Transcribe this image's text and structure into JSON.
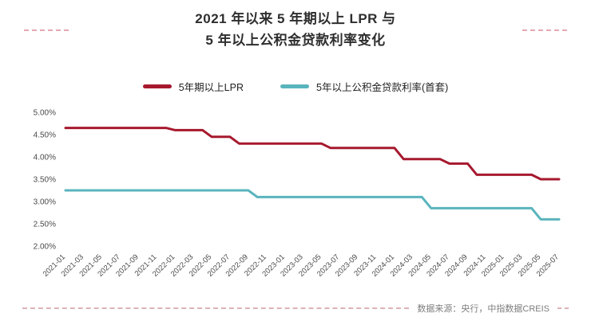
{
  "title": {
    "line1": "2021 年以来 5 年期以上 LPR 与",
    "line2": "5 年以上公积金贷款利率变化"
  },
  "legend": [
    {
      "label": "5年期以上LPR",
      "color": "#a6192e"
    },
    {
      "label": "5年以上公积金贷款利率(首套)",
      "color": "#59b4bd"
    }
  ],
  "footer": {
    "source": "数据来源：央行，中指数据CREIS"
  },
  "chart_data": {
    "type": "line",
    "title": "2021 年以来 5 年期以上 LPR 与 5 年以上公积金贷款利率变化",
    "xlabel": "",
    "ylabel": "",
    "ylim": [
      2.0,
      5.0
    ],
    "grid": false,
    "legend_position": "top",
    "y_tick_labels": [
      "5.00%",
      "4.50%",
      "4.00%",
      "3.50%",
      "3.00%",
      "2.50%",
      "2.00%"
    ],
    "x_tick_every": 2,
    "x": [
      "2021-01",
      "2021-02",
      "2021-03",
      "2021-04",
      "2021-05",
      "2021-06",
      "2021-07",
      "2021-08",
      "2021-09",
      "2021-10",
      "2021-11",
      "2021-12",
      "2022-01",
      "2022-02",
      "2022-03",
      "2022-04",
      "2022-05",
      "2022-06",
      "2022-07",
      "2022-08",
      "2022-09",
      "2022-10",
      "2022-11",
      "2022-12",
      "2023-01",
      "2023-02",
      "2023-03",
      "2023-04",
      "2023-05",
      "2023-06",
      "2023-07",
      "2023-08",
      "2023-09",
      "2023-10",
      "2023-11",
      "2023-12",
      "2024-01",
      "2024-02",
      "2024-03",
      "2024-04",
      "2024-05",
      "2024-06",
      "2024-07",
      "2024-08",
      "2024-09",
      "2024-10",
      "2024-11",
      "2024-12",
      "2025-01",
      "2025-02",
      "2025-03",
      "2025-04",
      "2025-05",
      "2025-06",
      "2025-07"
    ],
    "series": [
      {
        "name": "5年期以上LPR",
        "color": "#a6192e",
        "values": [
          4.65,
          4.65,
          4.65,
          4.65,
          4.65,
          4.65,
          4.65,
          4.65,
          4.65,
          4.65,
          4.65,
          4.65,
          4.6,
          4.6,
          4.6,
          4.6,
          4.45,
          4.45,
          4.45,
          4.3,
          4.3,
          4.3,
          4.3,
          4.3,
          4.3,
          4.3,
          4.3,
          4.3,
          4.3,
          4.2,
          4.2,
          4.2,
          4.2,
          4.2,
          4.2,
          4.2,
          4.2,
          3.95,
          3.95,
          3.95,
          3.95,
          3.95,
          3.85,
          3.85,
          3.85,
          3.6,
          3.6,
          3.6,
          3.6,
          3.6,
          3.6,
          3.6,
          3.5,
          3.5,
          3.5
        ]
      },
      {
        "name": "5年以上公积金贷款利率(首套)",
        "color": "#59b4bd",
        "values": [
          3.25,
          3.25,
          3.25,
          3.25,
          3.25,
          3.25,
          3.25,
          3.25,
          3.25,
          3.25,
          3.25,
          3.25,
          3.25,
          3.25,
          3.25,
          3.25,
          3.25,
          3.25,
          3.25,
          3.25,
          3.25,
          3.1,
          3.1,
          3.1,
          3.1,
          3.1,
          3.1,
          3.1,
          3.1,
          3.1,
          3.1,
          3.1,
          3.1,
          3.1,
          3.1,
          3.1,
          3.1,
          3.1,
          3.1,
          3.1,
          2.85,
          2.85,
          2.85,
          2.85,
          2.85,
          2.85,
          2.85,
          2.85,
          2.85,
          2.85,
          2.85,
          2.85,
          2.6,
          2.6,
          2.6
        ]
      }
    ]
  }
}
